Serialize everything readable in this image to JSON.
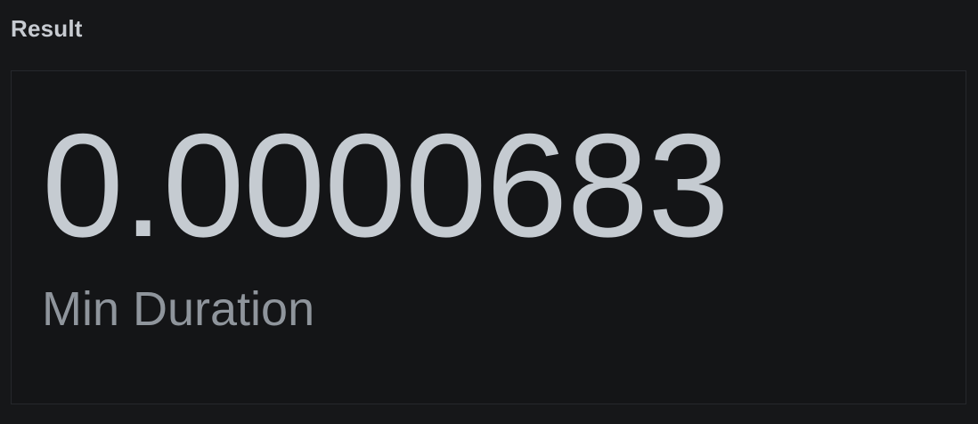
{
  "panel": {
    "title": "Result"
  },
  "stat": {
    "value": "0.0000683",
    "label": "Min Duration"
  },
  "colors": {
    "background": "#161719",
    "card_background": "#141517",
    "card_border": "#26282c",
    "title_text": "#c7cbd1",
    "value_text": "#c5cbd1",
    "label_text": "#8f959c"
  }
}
